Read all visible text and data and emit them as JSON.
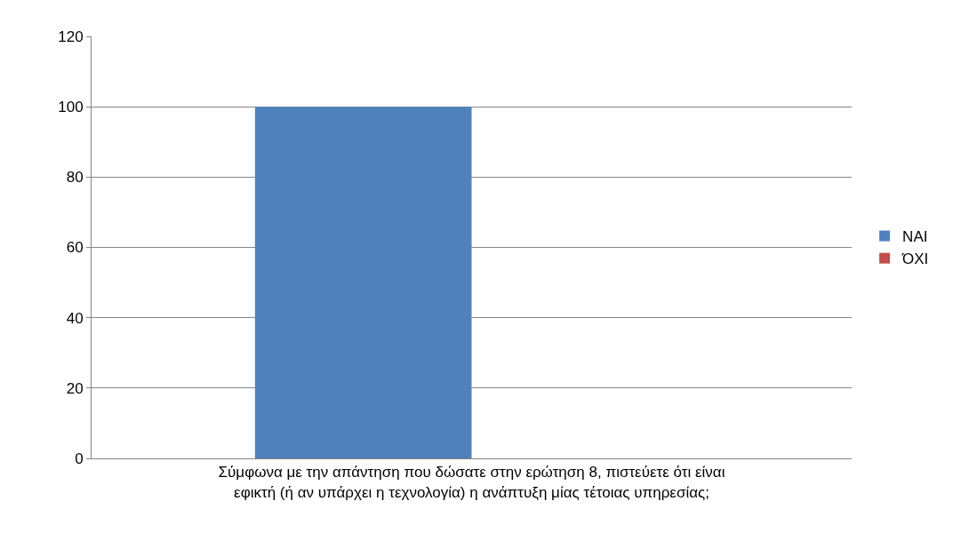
{
  "chart_data": {
    "type": "bar",
    "categories": [
      "Σύμφωνα με την απάντηση που δώσατε στην ερώτηση 8, πιστεύετε ότι είναι εφικτή (ή αν υπάρχει η τεχνολογία) η ανάπτυξη μίας τέτοιας υπηρεσίας;"
    ],
    "series": [
      {
        "name": "ΝΑΙ",
        "color": "#4f81bd",
        "values": [
          100
        ]
      },
      {
        "name": "ΌΧΙ",
        "color": "#c0504d",
        "values": [
          0
        ]
      }
    ],
    "ylim": [
      0,
      120
    ],
    "yticks": [
      0,
      20,
      40,
      60,
      80,
      100,
      120
    ],
    "grid": "y",
    "legend": "right"
  }
}
